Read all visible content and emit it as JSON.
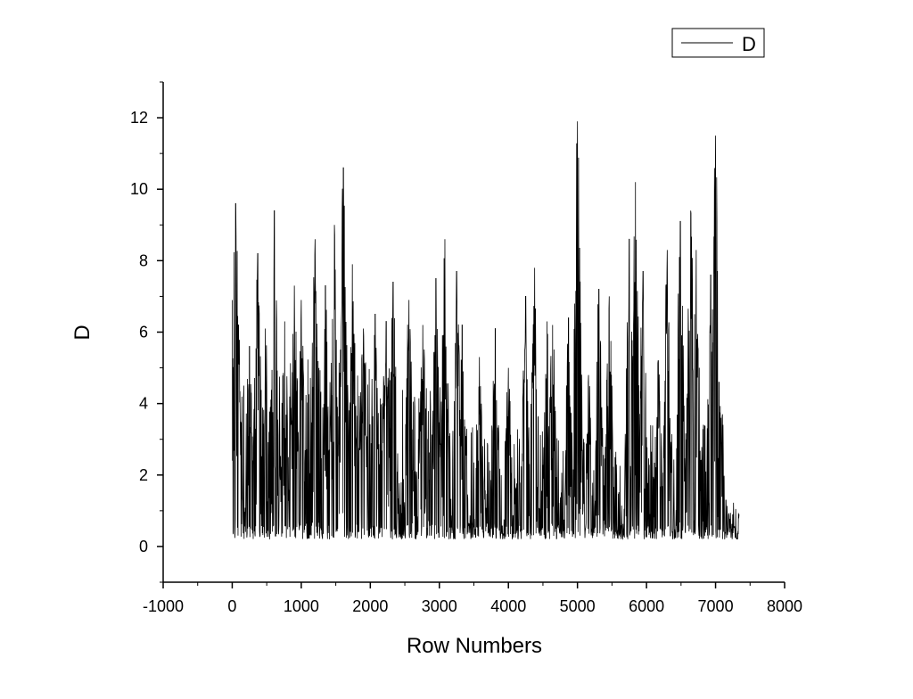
{
  "chart_data": {
    "type": "line",
    "title": "",
    "xlabel": "Row Numbers",
    "ylabel": "D",
    "xlim": [
      -1000,
      8000
    ],
    "ylim": [
      -1,
      13
    ],
    "xticks": [
      -1000,
      0,
      1000,
      2000,
      3000,
      4000,
      5000,
      6000,
      7000,
      8000
    ],
    "xtick_labels": [
      "-1000",
      "0",
      "1000",
      "2000",
      "3000",
      "4000",
      "5000",
      "6000",
      "7000",
      "8000"
    ],
    "yticks": [
      0,
      2,
      4,
      6,
      8,
      10,
      12
    ],
    "ytick_labels": [
      "0",
      "2",
      "4",
      "6",
      "8",
      "10",
      "12"
    ],
    "grid": false,
    "legend_position": "top-right",
    "series": [
      {
        "name": "D",
        "color": "#000000",
        "peaks": [
          [
            0,
            6.9
          ],
          [
            50,
            9.6
          ],
          [
            90,
            6.2
          ],
          [
            250,
            5.6
          ],
          [
            370,
            8.2
          ],
          [
            480,
            6.1
          ],
          [
            610,
            9.4
          ],
          [
            760,
            6.3
          ],
          [
            900,
            7.3
          ],
          [
            1000,
            6.9
          ],
          [
            1200,
            8.6
          ],
          [
            1350,
            7.3
          ],
          [
            1480,
            9.0
          ],
          [
            1610,
            10.6
          ],
          [
            1740,
            7.9
          ],
          [
            1900,
            6.1
          ],
          [
            2070,
            6.5
          ],
          [
            2230,
            6.3
          ],
          [
            2330,
            7.4
          ],
          [
            2560,
            6.9
          ],
          [
            2760,
            6.2
          ],
          [
            2950,
            7.5
          ],
          [
            3080,
            8.6
          ],
          [
            3250,
            7.7
          ],
          [
            3330,
            6.2
          ],
          [
            3580,
            5.3
          ],
          [
            3810,
            6.1
          ],
          [
            4000,
            5.0
          ],
          [
            4250,
            7.0
          ],
          [
            4380,
            7.8
          ],
          [
            4560,
            6.3
          ],
          [
            4640,
            6.2
          ],
          [
            4870,
            6.4
          ],
          [
            5000,
            11.9
          ],
          [
            5160,
            4.8
          ],
          [
            5310,
            7.2
          ],
          [
            5460,
            7.0
          ],
          [
            5750,
            8.6
          ],
          [
            5840,
            10.2
          ],
          [
            5950,
            7.7
          ],
          [
            6170,
            5.2
          ],
          [
            6300,
            8.3
          ],
          [
            6490,
            9.1
          ],
          [
            6640,
            9.4
          ],
          [
            6720,
            8.3
          ],
          [
            6930,
            7.6
          ],
          [
            7000,
            11.5
          ],
          [
            7050,
            4.6
          ],
          [
            7100,
            3.7
          ],
          [
            7150,
            1.3
          ],
          [
            7340,
            0.9
          ]
        ]
      }
    ]
  }
}
